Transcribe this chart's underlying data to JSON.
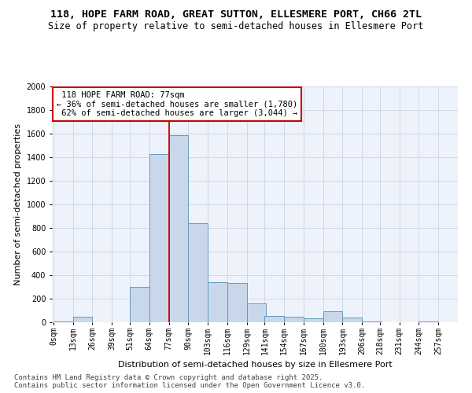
{
  "title1": "118, HOPE FARM ROAD, GREAT SUTTON, ELLESMERE PORT, CH66 2TL",
  "title2": "Size of property relative to semi-detached houses in Ellesmere Port",
  "xlabel": "Distribution of semi-detached houses by size in Ellesmere Port",
  "ylabel": "Number of semi-detached properties",
  "property_label": "118 HOPE FARM ROAD: 77sqm",
  "pct_smaller": 36,
  "n_smaller": 1780,
  "pct_larger": 62,
  "n_larger": 3044,
  "bin_width": 13,
  "bin_starts": [
    0,
    13,
    26,
    39,
    51,
    64,
    77,
    90,
    103,
    116,
    129,
    141,
    154,
    167,
    180,
    193,
    206,
    218,
    231,
    244
  ],
  "bin_labels": [
    "0sqm",
    "13sqm",
    "26sqm",
    "39sqm",
    "51sqm",
    "64sqm",
    "77sqm",
    "90sqm",
    "103sqm",
    "116sqm",
    "129sqm",
    "141sqm",
    "154sqm",
    "167sqm",
    "180sqm",
    "193sqm",
    "206sqm",
    "218sqm",
    "231sqm",
    "244sqm",
    "257sqm"
  ],
  "bar_heights": [
    5,
    50,
    0,
    0,
    300,
    1430,
    1590,
    840,
    340,
    335,
    160,
    55,
    45,
    35,
    95,
    38,
    10,
    0,
    0,
    5
  ],
  "bar_color": "#c8d8ea",
  "bar_edge_color": "#6699bb",
  "vline_color": "#cc0000",
  "vline_x": 77,
  "ylim": [
    0,
    2000
  ],
  "yticks": [
    0,
    200,
    400,
    600,
    800,
    1000,
    1200,
    1400,
    1600,
    1800,
    2000
  ],
  "grid_color": "#d0d8e8",
  "bg_color": "#eef2fb",
  "annotation_box_color": "#cc0000",
  "footer": "Contains HM Land Registry data © Crown copyright and database right 2025.\nContains public sector information licensed under the Open Government Licence v3.0.",
  "title_fontsize": 9.5,
  "subtitle_fontsize": 8.5,
  "axis_label_fontsize": 8,
  "tick_fontsize": 7,
  "annotation_fontsize": 7.5,
  "footer_fontsize": 6.5
}
